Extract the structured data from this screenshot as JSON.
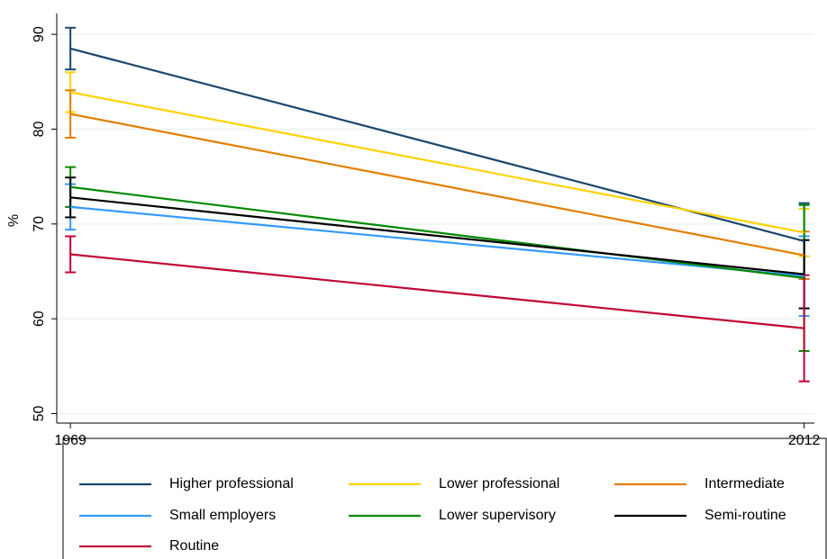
{
  "chart_data": {
    "type": "line",
    "y_label": "%",
    "x": [
      1969,
      2012
    ],
    "xlim": [
      1968.2,
      2012.6
    ],
    "xticks": [
      1969,
      2012
    ],
    "ylim": [
      49,
      92.2
    ],
    "yticks": [
      50,
      60,
      70,
      80,
      90
    ],
    "grid": true,
    "legend": "bottom",
    "series": [
      {
        "name": "Higher professional",
        "color": "#1a476f",
        "values": [
          88.5,
          68.2
        ],
        "errors": [
          2.2,
          4.0
        ]
      },
      {
        "name": "Lower professional",
        "color": "#ffd200",
        "values": [
          83.9,
          69.1
        ],
        "errors": [
          2.1,
          2.5
        ]
      },
      {
        "name": "Intermediate",
        "color": "#e37e00",
        "values": [
          81.6,
          66.7
        ],
        "errors": [
          2.5,
          2.5
        ]
      },
      {
        "name": "Small employers",
        "color": "#3399ff",
        "values": [
          71.8,
          64.5
        ],
        "errors": [
          2.4,
          4.2
        ]
      },
      {
        "name": "Lower supervisory",
        "color": "#008a00",
        "values": [
          73.9,
          64.3
        ],
        "errors": [
          2.1,
          7.7
        ]
      },
      {
        "name": "Semi-routine",
        "color": "#000000",
        "values": [
          72.8,
          64.7
        ],
        "errors": [
          2.1,
          3.6
        ]
      },
      {
        "name": "Routine",
        "color": "#c10534",
        "values": [
          66.8,
          59.0
        ],
        "errors": [
          1.9,
          5.6
        ]
      }
    ]
  }
}
